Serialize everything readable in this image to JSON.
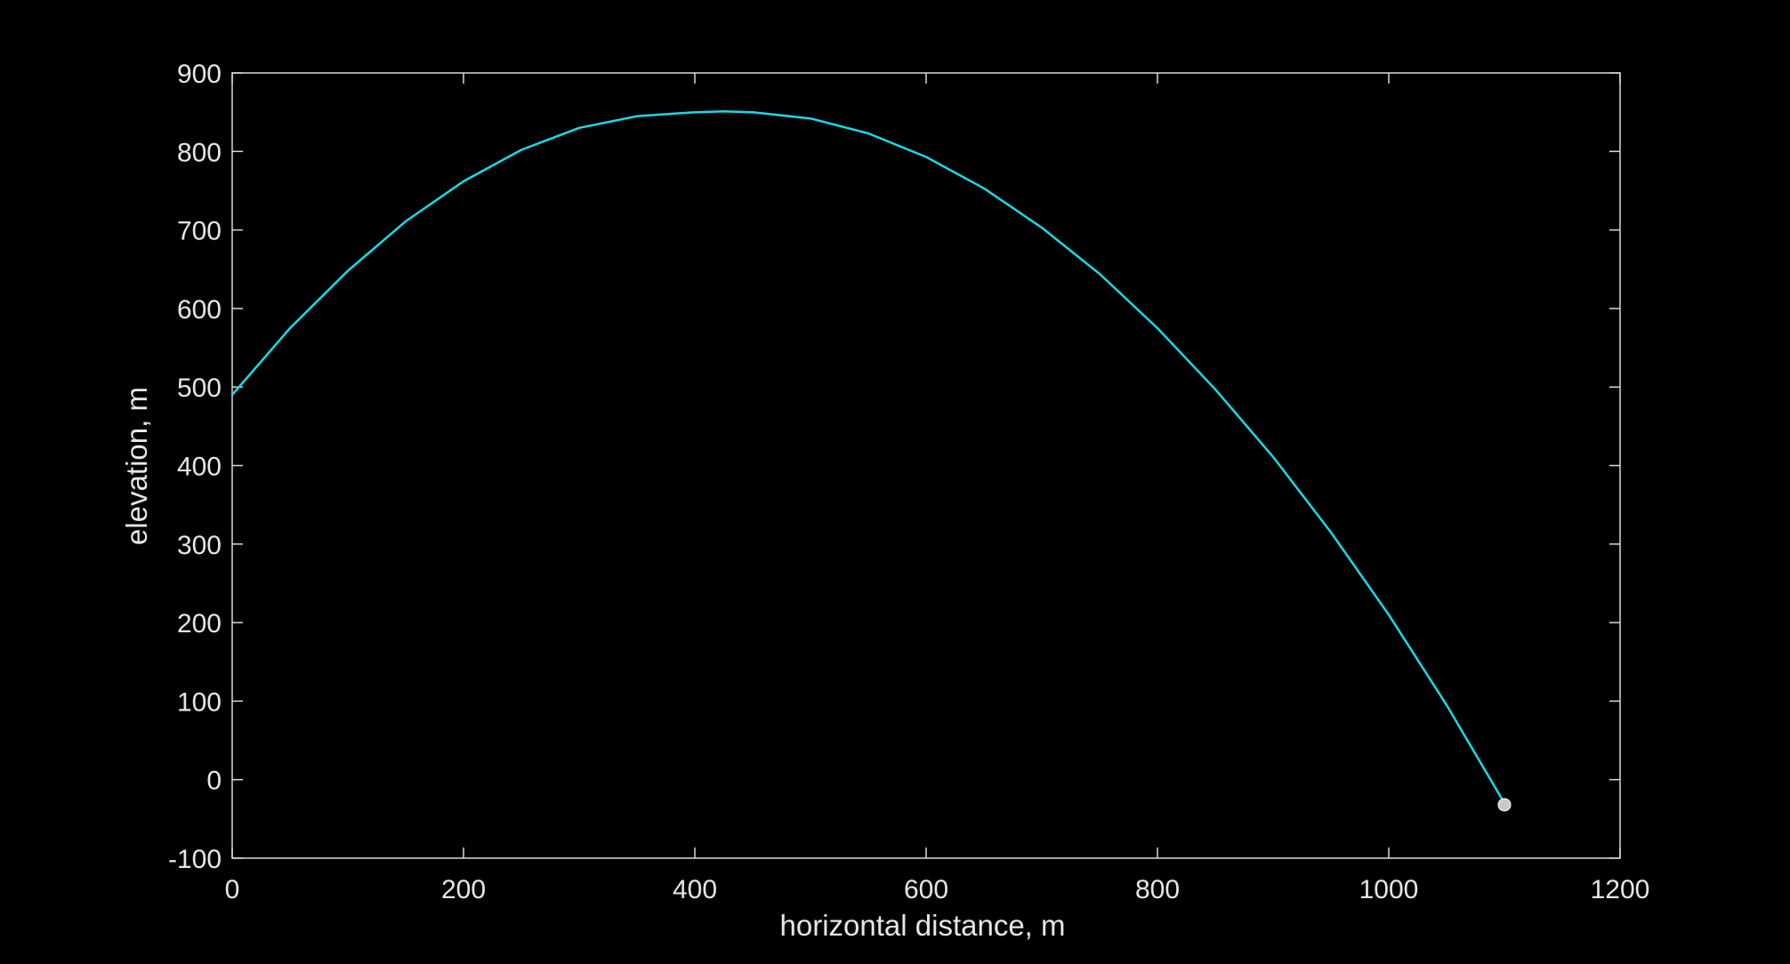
{
  "chart_data": {
    "type": "line",
    "title": "",
    "xlabel": "horizontal distance, m",
    "ylabel": "elevation, m",
    "xlim": [
      0,
      1200
    ],
    "ylim": [
      -100,
      900
    ],
    "xticks": [
      0,
      200,
      400,
      600,
      800,
      1000,
      1200
    ],
    "yticks": [
      -100,
      0,
      100,
      200,
      300,
      400,
      500,
      600,
      700,
      800,
      900
    ],
    "xtick_labels": [
      "0",
      "200",
      "400",
      "600",
      "800",
      "1000",
      "1200"
    ],
    "ytick_labels": [
      "-100",
      "0",
      "100",
      "200",
      "300",
      "400",
      "500",
      "600",
      "700",
      "800",
      "900"
    ],
    "grid": false,
    "legend": "none",
    "series": [
      {
        "color": "#19d9e6",
        "x": [
          0,
          50,
          100,
          150,
          200,
          250,
          300,
          350,
          400,
          425,
          450,
          500,
          550,
          600,
          650,
          700,
          750,
          800,
          850,
          900,
          950,
          1000,
          1050,
          1100
        ],
        "y": [
          490,
          575,
          648,
          711,
          762,
          802,
          830,
          845,
          850,
          851,
          850,
          842,
          823,
          793,
          753,
          703,
          644,
          575,
          497,
          411,
          315,
          210,
          95,
          -30
        ]
      }
    ],
    "markers": [
      {
        "x": 1100,
        "y": -32,
        "color": "#c8c8c8"
      }
    ],
    "colors": {
      "background": "#000000",
      "axes": "#d9d9d9",
      "text": "#e6e6e6"
    }
  }
}
